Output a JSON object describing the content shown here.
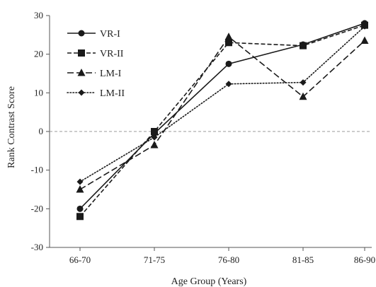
{
  "chart_data": {
    "type": "line",
    "title": "",
    "xlabel": "Age Group (Years)",
    "ylabel": "Rank Contrast Score",
    "categories": [
      "66-70",
      "71-75",
      "76-80",
      "81-85",
      "86-90"
    ],
    "ylim": [
      -30,
      30
    ],
    "yticks": [
      -30,
      -20,
      -10,
      0,
      10,
      20,
      30
    ],
    "grid": false,
    "zero_line": "dashed",
    "legend_position": "top-left",
    "series": [
      {
        "name": "VR-I",
        "values": [
          -20,
          -0.5,
          17.5,
          22.5,
          28
        ],
        "marker": "circle",
        "line_style": "solid",
        "color": "#1a1a1a"
      },
      {
        "name": "VR-II",
        "values": [
          -22,
          0,
          23,
          22.2,
          27.5
        ],
        "marker": "square",
        "line_style": "dashed",
        "color": "#1a1a1a"
      },
      {
        "name": "LM-I",
        "values": [
          -15,
          -3.5,
          24.5,
          9,
          23.5
        ],
        "marker": "triangle",
        "line_style": "longdash",
        "color": "#1a1a1a"
      },
      {
        "name": "LM-II",
        "values": [
          -13,
          -1.5,
          12.3,
          12.7,
          27.2
        ],
        "marker": "diamond",
        "line_style": "dotted",
        "color": "#1a1a1a"
      }
    ]
  }
}
